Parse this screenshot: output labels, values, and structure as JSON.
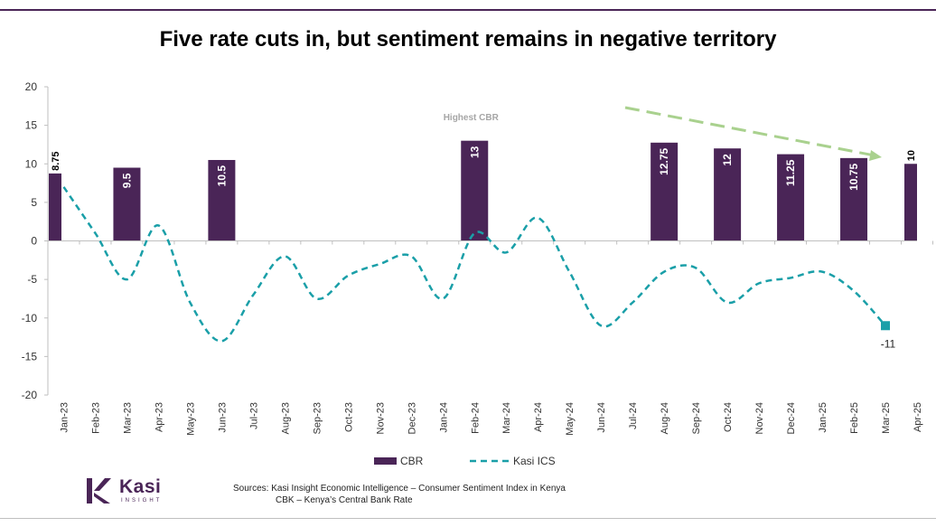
{
  "title": "Five rate cuts in, but sentiment remains in negative territory",
  "chart_data": {
    "type": "bar+line",
    "categories": [
      "Jan-23",
      "Feb-23",
      "Mar-23",
      "Apr-23",
      "May-23",
      "Jun-23",
      "Jul-23",
      "Aug-23",
      "Sep-23",
      "Oct-23",
      "Nov-23",
      "Dec-23",
      "Jan-24",
      "Feb-24",
      "Mar-24",
      "Apr-24",
      "May-24",
      "Jun-24",
      "Jul-24",
      "Aug-24",
      "Sep-24",
      "Oct-24",
      "Nov-24",
      "Dec-24",
      "Jan-25",
      "Feb-25",
      "Mar-25",
      "Apr-25"
    ],
    "ylim": [
      -20,
      20
    ],
    "yticks": [
      "20",
      "15",
      "10",
      "5",
      "0",
      "-5",
      "-10",
      "-15",
      "-20"
    ],
    "series": [
      {
        "name": "CBR",
        "kind": "bar",
        "color": "#4a2557",
        "values": [
          8.75,
          null,
          9.5,
          null,
          null,
          10.5,
          null,
          null,
          null,
          null,
          null,
          null,
          null,
          13,
          null,
          null,
          null,
          null,
          null,
          12.75,
          null,
          12,
          null,
          11.25,
          null,
          10.75,
          null,
          10
        ],
        "labels": [
          "8.75",
          null,
          "9.5",
          null,
          null,
          "10.5",
          null,
          null,
          null,
          null,
          null,
          null,
          null,
          "13",
          null,
          null,
          null,
          null,
          null,
          "12.75",
          null,
          "12",
          null,
          "11.25",
          null,
          "10.75",
          null,
          "10"
        ]
      },
      {
        "name": "Kasi ICS",
        "kind": "line",
        "color": "#1a9fa8",
        "values": [
          7,
          1,
          -5,
          2,
          -8,
          -13,
          -7,
          -2,
          -7.5,
          -4.5,
          -3,
          -2,
          -7.5,
          1,
          -1.5,
          3,
          -4,
          -11,
          -8,
          -4,
          -3.5,
          -8,
          -5.5,
          -4.8,
          -4,
          -6.5,
          -11,
          null
        ]
      }
    ],
    "annotations": [
      {
        "text": "Highest CBR",
        "color": "#a6a6a6"
      },
      {
        "text": "-11",
        "color": "#222222"
      }
    ],
    "trend_arrow_color": "#a9d18e"
  },
  "legend": {
    "cbr": "CBR",
    "ics": "Kasi ICS"
  },
  "logo": {
    "name": "Kasi",
    "sub": "INSIGHT"
  },
  "source": {
    "line1": "Sources: Kasi Insight Economic Intelligence – Consumer Sentiment Index in Kenya",
    "line2": "CBK – Kenya’s Central Bank Rate"
  }
}
